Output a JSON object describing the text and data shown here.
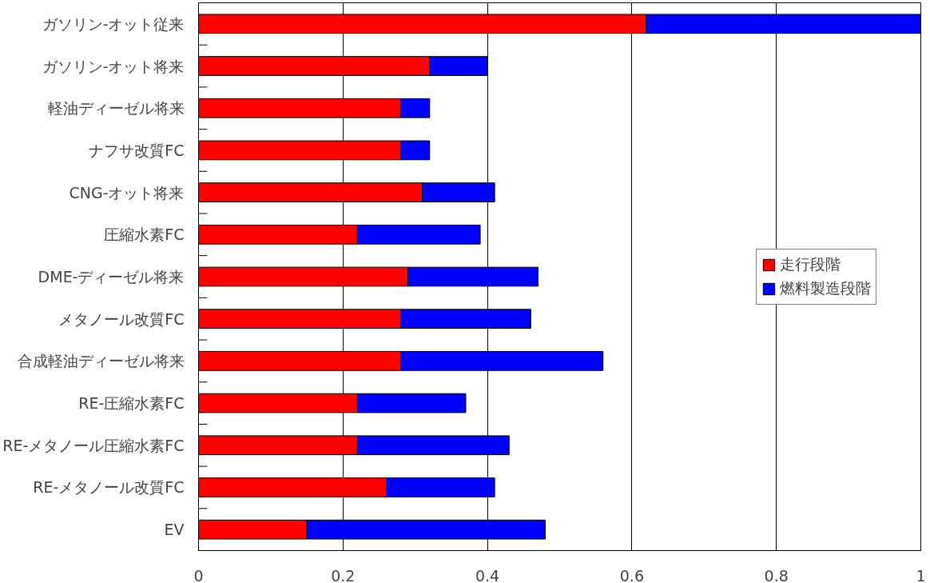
{
  "chart_data": {
    "type": "bar",
    "orientation": "horizontal",
    "stacked": true,
    "categories": [
      "ガソリン-オット従来",
      "ガソリン-オット将来",
      "軽油ディーゼル将来",
      "ナフサ改質FC",
      "CNG-オット将来",
      "圧縮水素FC",
      "DME-ディーゼル将来",
      "メタノール改質FC",
      "合成軽油ディーゼル将来",
      "RE-圧縮水素FC",
      "RE-メタノール圧縮水素FC",
      "RE-メタノール改質FC",
      "EV"
    ],
    "series": [
      {
        "name": "走行段階",
        "color": "#ff0000",
        "values": [
          0.62,
          0.32,
          0.28,
          0.28,
          0.31,
          0.22,
          0.29,
          0.28,
          0.28,
          0.22,
          0.22,
          0.26,
          0.15
        ]
      },
      {
        "name": "燃料製造段階",
        "color": "#0000ff",
        "values": [
          0.38,
          0.08,
          0.04,
          0.04,
          0.1,
          0.17,
          0.18,
          0.18,
          0.28,
          0.15,
          0.21,
          0.15,
          0.33
        ]
      }
    ],
    "xlim": [
      0,
      1
    ],
    "xticks": [
      0,
      0.2,
      0.4,
      0.6,
      0.8,
      1
    ],
    "grid": "x",
    "legend": "right"
  }
}
